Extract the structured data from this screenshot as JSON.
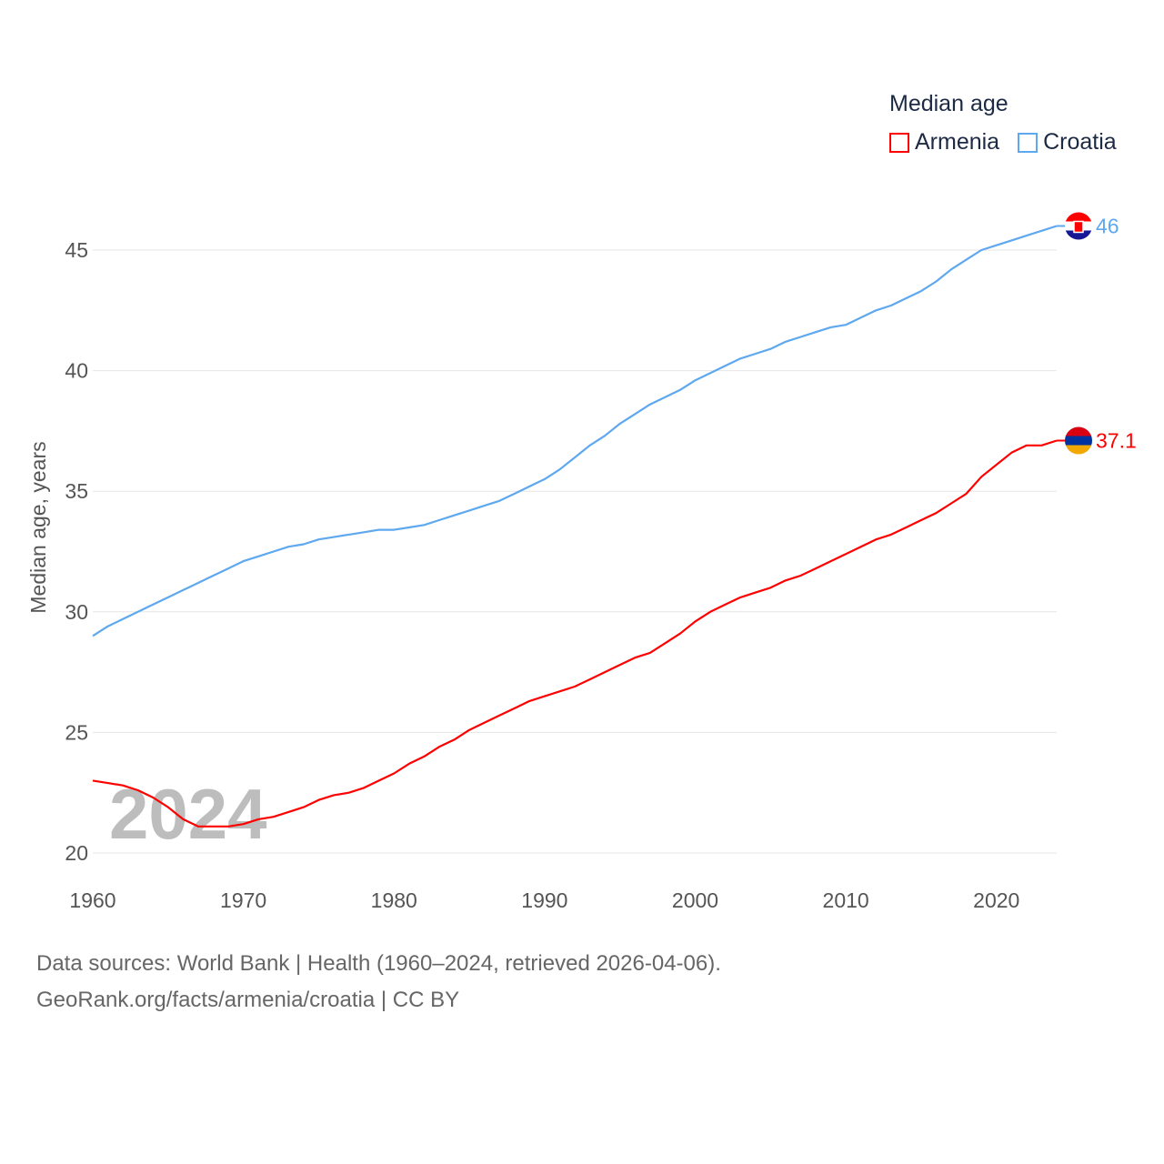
{
  "chart_data": {
    "type": "line",
    "ylabel": "Median age, years",
    "xlabel": "",
    "legend_title": "Median age",
    "legend_placement": "top-right",
    "year_watermark": "2024",
    "xlim": [
      1960,
      2024
    ],
    "ylim": [
      20,
      46.5
    ],
    "x_ticks": [
      1960,
      1970,
      1980,
      1990,
      2000,
      2010,
      2020
    ],
    "y_ticks": [
      20,
      25,
      30,
      35,
      40,
      45
    ],
    "grid": true,
    "x": [
      1960,
      1961,
      1962,
      1963,
      1964,
      1965,
      1966,
      1967,
      1968,
      1969,
      1970,
      1971,
      1972,
      1973,
      1974,
      1975,
      1976,
      1977,
      1978,
      1979,
      1980,
      1981,
      1982,
      1983,
      1984,
      1985,
      1986,
      1987,
      1988,
      1989,
      1990,
      1991,
      1992,
      1993,
      1994,
      1995,
      1996,
      1997,
      1998,
      1999,
      2000,
      2001,
      2002,
      2003,
      2004,
      2005,
      2006,
      2007,
      2008,
      2009,
      2010,
      2011,
      2012,
      2013,
      2014,
      2015,
      2016,
      2017,
      2018,
      2019,
      2020,
      2021,
      2022,
      2023,
      2024
    ],
    "series": [
      {
        "name": "Armenia",
        "color": "#ff0000",
        "end_label": "37.1",
        "values": [
          23.0,
          22.9,
          22.8,
          22.6,
          22.3,
          21.9,
          21.4,
          21.1,
          21.1,
          21.1,
          21.2,
          21.4,
          21.5,
          21.7,
          21.9,
          22.2,
          22.4,
          22.5,
          22.7,
          23.0,
          23.3,
          23.7,
          24.0,
          24.4,
          24.7,
          25.1,
          25.4,
          25.7,
          26.0,
          26.3,
          26.5,
          26.7,
          26.9,
          27.2,
          27.5,
          27.8,
          28.1,
          28.3,
          28.7,
          29.1,
          29.6,
          30.0,
          30.3,
          30.6,
          30.8,
          31.0,
          31.3,
          31.5,
          31.8,
          32.1,
          32.4,
          32.7,
          33.0,
          33.2,
          33.5,
          33.8,
          34.1,
          34.5,
          34.9,
          35.6,
          36.1,
          36.6,
          36.9,
          36.9,
          37.1
        ]
      },
      {
        "name": "Croatia",
        "color": "#5ea8ef",
        "end_label": "46",
        "values": [
          29.0,
          29.4,
          29.7,
          30.0,
          30.3,
          30.6,
          30.9,
          31.2,
          31.5,
          31.8,
          32.1,
          32.3,
          32.5,
          32.7,
          32.8,
          33.0,
          33.1,
          33.2,
          33.3,
          33.4,
          33.4,
          33.5,
          33.6,
          33.8,
          34.0,
          34.2,
          34.4,
          34.6,
          34.9,
          35.2,
          35.5,
          35.9,
          36.4,
          36.9,
          37.3,
          37.8,
          38.2,
          38.6,
          38.9,
          39.2,
          39.6,
          39.9,
          40.2,
          40.5,
          40.7,
          40.9,
          41.2,
          41.4,
          41.6,
          41.8,
          41.9,
          42.2,
          42.5,
          42.7,
          43.0,
          43.3,
          43.7,
          44.2,
          44.6,
          45.0,
          45.2,
          45.4,
          45.6,
          45.8,
          46.0
        ]
      }
    ]
  },
  "footer": {
    "sources": "Data sources: World Bank | Health (1960–2024, retrieved 2026-04-06).",
    "link": "GeoRank.org/facts/armenia/croatia | CC BY"
  }
}
